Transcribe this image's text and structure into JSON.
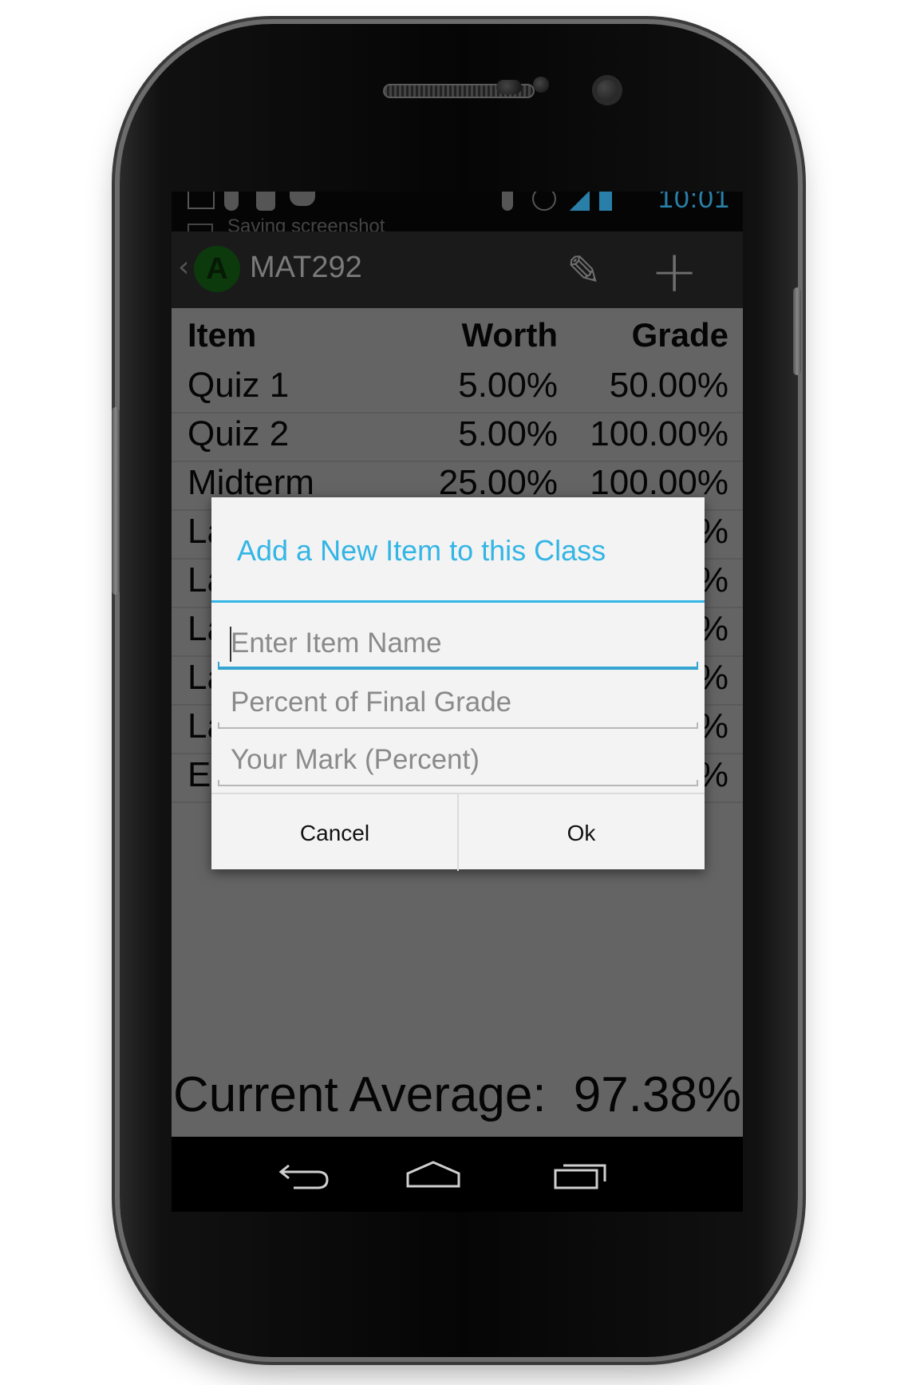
{
  "status_bar": {
    "time": "10:01",
    "notification": "Saving screenshot"
  },
  "action_bar": {
    "logo_letter": "A",
    "title": "MAT292",
    "edit_icon": "pencil-icon",
    "add_icon": "plus-icon"
  },
  "table": {
    "headers": {
      "item": "Item",
      "worth": "Worth",
      "grade": "Grade"
    },
    "rows": [
      {
        "item": "Quiz 1",
        "worth": "5.00%",
        "grade": "50.00%"
      },
      {
        "item": "Quiz 2",
        "worth": "5.00%",
        "grade": "100.00%"
      },
      {
        "item": "Midterm",
        "worth": "25.00%",
        "grade": "100.00%"
      },
      {
        "item": "La",
        "worth": "",
        "grade": "%"
      },
      {
        "item": "La",
        "worth": "",
        "grade": "%"
      },
      {
        "item": "La",
        "worth": "",
        "grade": "%"
      },
      {
        "item": "La",
        "worth": "",
        "grade": "%"
      },
      {
        "item": "La",
        "worth": "",
        "grade": "%"
      },
      {
        "item": "Ex",
        "worth": "",
        "grade": "%"
      }
    ]
  },
  "average": {
    "label": "Current Average:",
    "value": "97.38%"
  },
  "dialog": {
    "title": "Add a New Item to this Class",
    "fields": {
      "name_placeholder": "Enter Item Name",
      "percent_placeholder": "Percent of Final Grade",
      "mark_placeholder": "Your Mark (Percent)"
    },
    "cancel_label": "Cancel",
    "ok_label": "Ok"
  },
  "navigation": {
    "back_icon": "back-icon",
    "home_icon": "home-icon",
    "recents_icon": "recents-icon"
  },
  "colors": {
    "accent": "#33b5e5",
    "dim_overlay": "#646464"
  }
}
